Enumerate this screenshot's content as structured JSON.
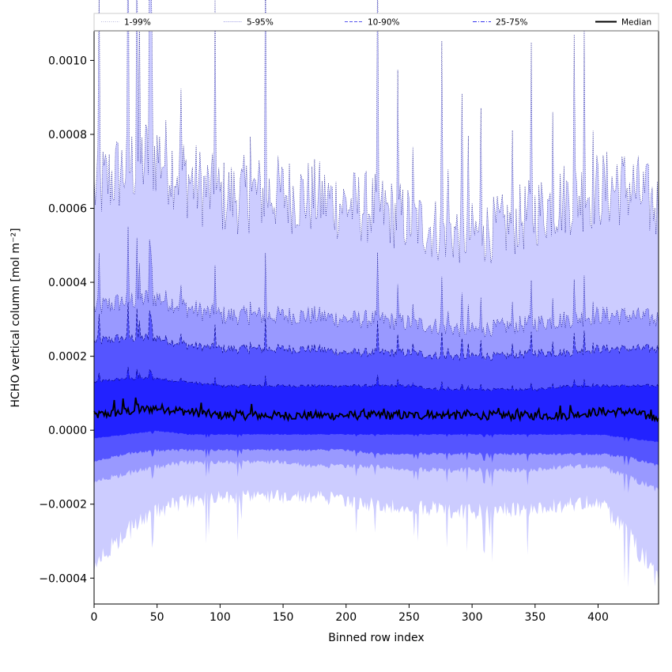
{
  "chart_data": {
    "type": "area",
    "xlabel": "Binned row index",
    "ylabel": "HCHO vertical column [mol m⁻²]",
    "xlim": [
      0,
      448
    ],
    "ylim": [
      -0.00047,
      0.00108
    ],
    "x_ticks": [
      0,
      50,
      100,
      150,
      200,
      250,
      300,
      350,
      400
    ],
    "x_tick_labels": [
      "0",
      "50",
      "100",
      "150",
      "200",
      "250",
      "300",
      "350",
      "400"
    ],
    "y_ticks": [
      -0.0004,
      -0.0002,
      0.0,
      0.0002,
      0.0004,
      0.0006,
      0.0008,
      0.001
    ],
    "y_tick_labels": [
      "−0.0004",
      "−0.0002",
      "0.0000",
      "0.0002",
      "0.0004",
      "0.0006",
      "0.0008",
      "0.0010"
    ],
    "grid": false,
    "legend_position": "top",
    "x_sample": [
      0,
      25,
      50,
      75,
      100,
      125,
      150,
      175,
      200,
      225,
      250,
      275,
      300,
      325,
      350,
      375,
      400,
      425,
      448
    ],
    "series": [
      {
        "name": "1-99%",
        "style": "dotted",
        "color": "#ccccff",
        "upper": [
          0.00065,
          0.00071,
          0.00075,
          0.00068,
          0.00063,
          0.00064,
          0.00064,
          0.00063,
          0.00061,
          0.0006,
          0.00057,
          0.00054,
          0.00053,
          0.00055,
          0.00059,
          0.00063,
          0.00065,
          0.00066,
          0.0006
        ],
        "lower": [
          -0.00033,
          -0.00025,
          -0.00019,
          -0.00017,
          -0.00016,
          -0.00016,
          -0.00016,
          -0.00016,
          -0.00017,
          -0.00018,
          -0.00019,
          -0.00019,
          -0.0002,
          -0.00019,
          -0.00019,
          -0.00018,
          -0.00017,
          -0.00026,
          -0.00036
        ]
      },
      {
        "name": "5-95%",
        "style": "dotted",
        "color": "#9999ff",
        "upper": [
          0.00033,
          0.00035,
          0.00036,
          0.00033,
          0.00031,
          0.00031,
          0.00031,
          0.00031,
          0.0003,
          0.0003,
          0.00029,
          0.00028,
          0.00027,
          0.00028,
          0.00029,
          0.0003,
          0.00031,
          0.00031,
          0.0003
        ],
        "lower": [
          -0.00013,
          -0.00011,
          -9e-05,
          -8e-05,
          -8e-05,
          -8e-05,
          -8e-05,
          -9e-05,
          -9e-05,
          -9e-05,
          -0.0001,
          -0.0001,
          -0.0001,
          -0.0001,
          -0.0001,
          -9e-05,
          -9e-05,
          -0.00012,
          -0.00015
        ]
      },
      {
        "name": "10-90%",
        "style": "dashed",
        "color": "#5555ff",
        "upper": [
          0.00024,
          0.00025,
          0.00025,
          0.00023,
          0.00022,
          0.00022,
          0.00022,
          0.00022,
          0.00021,
          0.00021,
          0.00021,
          0.0002,
          0.0002,
          0.0002,
          0.00021,
          0.00021,
          0.00022,
          0.00022,
          0.00022
        ],
        "lower": [
          -8e-05,
          -6e-05,
          -5e-05,
          -5e-05,
          -5e-05,
          -5e-05,
          -5e-05,
          -5e-05,
          -5e-05,
          -6e-05,
          -6e-05,
          -6e-05,
          -6e-05,
          -6e-05,
          -6e-05,
          -6e-05,
          -6e-05,
          -7e-05,
          -9e-05
        ]
      },
      {
        "name": "25-75%",
        "style": "dashdot",
        "color": "#2222ff",
        "upper": [
          0.00013,
          0.00014,
          0.00014,
          0.00013,
          0.00012,
          0.00012,
          0.00012,
          0.00012,
          0.00012,
          0.00012,
          0.00012,
          0.00011,
          0.00011,
          0.00011,
          0.00011,
          0.00012,
          0.00012,
          0.00012,
          0.00012
        ],
        "lower": [
          -2e-05,
          -1e-05,
          0.0,
          -1e-05,
          -1e-05,
          -1e-05,
          -1e-05,
          -1e-05,
          -1e-05,
          -1e-05,
          -1e-05,
          -1e-05,
          -1e-05,
          -1e-05,
          -1e-05,
          -1e-05,
          -1e-05,
          -2e-05,
          -3e-05
        ]
      },
      {
        "name": "Median",
        "style": "solid",
        "color": "#000000",
        "values": [
          4e-05,
          5e-05,
          6e-05,
          5e-05,
          4e-05,
          4e-05,
          4e-05,
          4e-05,
          4e-05,
          4e-05,
          4e-05,
          4e-05,
          4e-05,
          4e-05,
          4e-05,
          4e-05,
          5e-05,
          5e-05,
          3e-05
        ]
      }
    ]
  }
}
